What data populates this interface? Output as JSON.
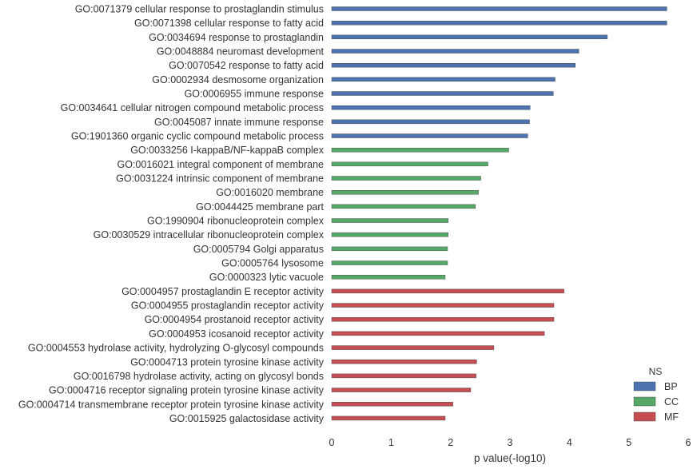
{
  "chart_data": {
    "type": "bar",
    "orientation": "horizontal",
    "xlabel": "p value(-log10)",
    "ylabel": "",
    "title": "",
    "xlim": [
      0,
      6
    ],
    "xticks": [
      0,
      1,
      2,
      3,
      4,
      5,
      6
    ],
    "grid": false,
    "legend": {
      "title": "NS",
      "placement": "bottom-right",
      "entries": [
        {
          "name": "BP",
          "color": "#4c72b0"
        },
        {
          "name": "CC",
          "color": "#55a868"
        },
        {
          "name": "MF",
          "color": "#c44e52"
        }
      ]
    },
    "bars": [
      {
        "label": "GO:0071379 cellular response to prostaglandin stimulus",
        "value": 5.64,
        "ns": "BP"
      },
      {
        "label": "GO:0071398 cellular response to fatty acid",
        "value": 5.64,
        "ns": "BP"
      },
      {
        "label": "GO:0034694 response to prostaglandin",
        "value": 4.64,
        "ns": "BP"
      },
      {
        "label": "GO:0048884 neuromast development",
        "value": 4.16,
        "ns": "BP"
      },
      {
        "label": "GO:0070542 response to fatty acid",
        "value": 4.1,
        "ns": "BP"
      },
      {
        "label": "GO:0002934 desmosome organization",
        "value": 3.76,
        "ns": "BP"
      },
      {
        "label": "GO:0006955 immune response",
        "value": 3.73,
        "ns": "BP"
      },
      {
        "label": "GO:0034641 cellular nitrogen compound metabolic process",
        "value": 3.34,
        "ns": "BP"
      },
      {
        "label": "GO:0045087 innate immune response",
        "value": 3.33,
        "ns": "BP"
      },
      {
        "label": "GO:1901360 organic cyclic compound metabolic process",
        "value": 3.3,
        "ns": "BP"
      },
      {
        "label": "GO:0033256 I-kappaB/NF-kappaB complex",
        "value": 2.98,
        "ns": "CC"
      },
      {
        "label": "GO:0016021 integral component of membrane",
        "value": 2.63,
        "ns": "CC"
      },
      {
        "label": "GO:0031224 intrinsic component of membrane",
        "value": 2.51,
        "ns": "CC"
      },
      {
        "label": "GO:0016020 membrane",
        "value": 2.47,
        "ns": "CC"
      },
      {
        "label": "GO:0044425 membrane part",
        "value": 2.42,
        "ns": "CC"
      },
      {
        "label": "GO:1990904 ribonucleoprotein complex",
        "value": 1.96,
        "ns": "CC"
      },
      {
        "label": "GO:0030529 intracellular ribonucleoprotein complex",
        "value": 1.96,
        "ns": "CC"
      },
      {
        "label": "GO:0005794 Golgi apparatus",
        "value": 1.95,
        "ns": "CC"
      },
      {
        "label": "GO:0005764 lysosome",
        "value": 1.95,
        "ns": "CC"
      },
      {
        "label": "GO:0000323 lytic vacuole",
        "value": 1.91,
        "ns": "CC"
      },
      {
        "label": "GO:0004957 prostaglandin E receptor activity",
        "value": 3.91,
        "ns": "MF"
      },
      {
        "label": "GO:0004955 prostaglandin receptor activity",
        "value": 3.74,
        "ns": "MF"
      },
      {
        "label": "GO:0004954 prostanoid receptor activity",
        "value": 3.74,
        "ns": "MF"
      },
      {
        "label": "GO:0004953 icosanoid receptor activity",
        "value": 3.58,
        "ns": "MF"
      },
      {
        "label": "GO:0004553 hydrolase activity, hydrolyzing O-glycosyl compounds",
        "value": 2.73,
        "ns": "MF"
      },
      {
        "label": "GO:0004713 protein tyrosine kinase activity",
        "value": 2.44,
        "ns": "MF"
      },
      {
        "label": "GO:0016798 hydrolase activity, acting on glycosyl bonds",
        "value": 2.43,
        "ns": "MF"
      },
      {
        "label": "GO:0004716 receptor signaling protein tyrosine kinase activity",
        "value": 2.34,
        "ns": "MF"
      },
      {
        "label": "GO:0004714 transmembrane receptor protein tyrosine kinase activity",
        "value": 2.04,
        "ns": "MF"
      },
      {
        "label": "GO:0015925 galactosidase activity",
        "value": 1.91,
        "ns": "MF"
      }
    ]
  }
}
